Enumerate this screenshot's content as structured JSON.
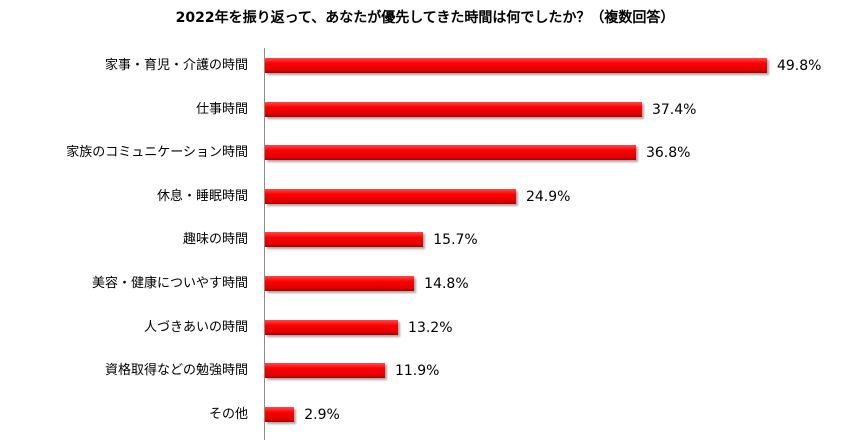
{
  "chart_data": {
    "type": "bar",
    "orientation": "horizontal",
    "title": "2022年を振り返って、あなたが優先してきた時間は何でしたか？（複数回答）",
    "xlabel": "",
    "ylabel": "",
    "categories": [
      "家事・育児・介護の時間",
      "仕事時間",
      "家族のコミュニケーション時間",
      "休息・睡眠時間",
      "趣味の時間",
      "美容・健康についやす時間",
      "人づきあいの時間",
      "資格取得などの勉強時間",
      "その他"
    ],
    "values": [
      49.8,
      37.4,
      36.8,
      24.9,
      15.7,
      14.8,
      13.2,
      11.9,
      2.9
    ],
    "value_labels": [
      "49.8%",
      "37.4%",
      "36.8%",
      "24.9%",
      "15.7%",
      "14.8%",
      "13.2%",
      "11.9%",
      "2.9%"
    ],
    "unit": "%",
    "grid": false,
    "legend": null,
    "bar_color": "#ff0000"
  }
}
